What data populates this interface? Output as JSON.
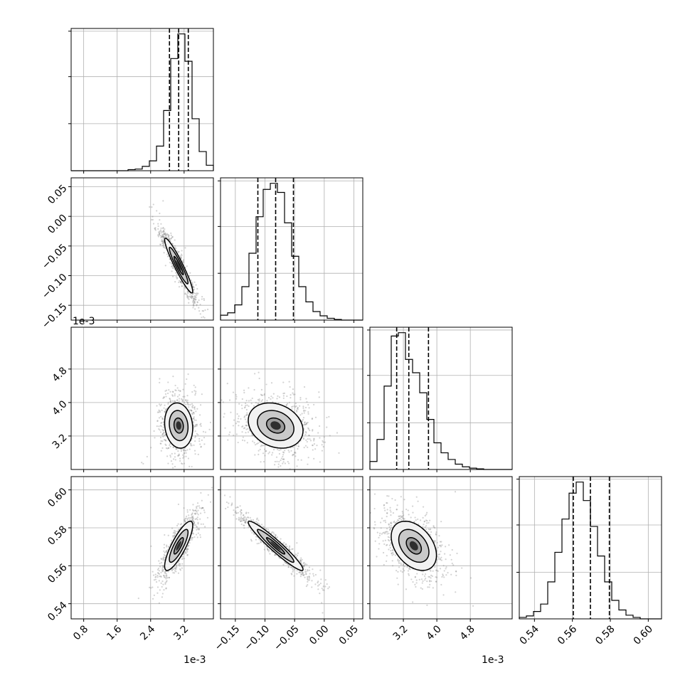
{
  "chart_data": {
    "type": "corner",
    "parameters": [
      {
        "range": [
          0.5,
          3.9
        ],
        "offset_label": "1e-3"
      },
      {
        "range": [
          -0.175,
          0.065
        ],
        "offset_label": "1e-3"
      },
      {
        "range": [
          2.4,
          5.8
        ],
        "offset_label": "1e-3"
      },
      {
        "range": [
          0.532,
          0.607
        ],
        "offset_label": ""
      }
    ],
    "x_tick_labels": [
      {
        "values": [
          0.8,
          1.6,
          2.4,
          3.2
        ],
        "labels": [
          "0.8",
          "1.6",
          "2.4",
          "3.2"
        ]
      },
      {
        "values": [
          -0.15,
          -0.1,
          -0.05,
          0.0,
          0.05
        ],
        "labels": [
          "−0.15",
          "−0.10",
          "−0.05",
          "0.00",
          "0.05"
        ]
      },
      {
        "values": [
          3.2,
          4.0,
          4.8
        ],
        "labels": [
          "3.2",
          "4.0",
          "4.8"
        ]
      },
      {
        "values": [
          0.54,
          0.56,
          0.58,
          0.6
        ],
        "labels": [
          "0.54",
          "0.56",
          "0.58",
          "0.60"
        ]
      }
    ],
    "y_tick_labels": [
      null,
      {
        "values": [
          -0.15,
          -0.1,
          -0.05,
          0.0,
          0.05
        ],
        "labels": [
          "−0.15",
          "−0.10",
          "−0.05",
          "0.00",
          "0.05"
        ]
      },
      {
        "values": [
          3.2,
          4.0,
          4.8
        ],
        "labels": [
          "3.2",
          "4.0",
          "4.8"
        ]
      },
      {
        "values": [
          0.54,
          0.56,
          0.58,
          0.6
        ],
        "labels": [
          "0.54",
          "0.56",
          "0.58",
          "0.60"
        ]
      }
    ],
    "histograms": [
      {
        "bin_edges": [
          0.5,
          0.67,
          0.84,
          1.01,
          1.18,
          1.35,
          1.52,
          1.69,
          1.86,
          2.03,
          2.2,
          2.37,
          2.54,
          2.71,
          2.88,
          3.05,
          3.22,
          3.39,
          3.56,
          3.73,
          3.9
        ],
        "counts": [
          0,
          0,
          0,
          0,
          0,
          0,
          0,
          0,
          2,
          3,
          8,
          18,
          45,
          110,
          205,
          250,
          200,
          95,
          35,
          10
        ],
        "quantiles": [
          2.85,
          3.07,
          3.3
        ]
      },
      {
        "bin_edges": [
          -0.175,
          -0.163,
          -0.151,
          -0.139,
          -0.127,
          -0.115,
          -0.103,
          -0.091,
          -0.079,
          -0.067,
          -0.055,
          -0.043,
          -0.031,
          -0.019,
          -0.007,
          0.005,
          0.017,
          0.029,
          0.041,
          0.053,
          0.065
        ],
        "counts": [
          8,
          12,
          25,
          55,
          110,
          170,
          215,
          225,
          210,
          160,
          105,
          55,
          30,
          14,
          7,
          3,
          1,
          0,
          0,
          0
        ],
        "quantiles": [
          -0.112,
          -0.082,
          -0.052
        ]
      },
      {
        "bin_edges": [
          2.4,
          2.57,
          2.74,
          2.91,
          3.08,
          3.25,
          3.42,
          3.59,
          3.76,
          3.93,
          4.1,
          4.27,
          4.44,
          4.61,
          4.78,
          4.95,
          5.12,
          5.29,
          5.46,
          5.63,
          5.8
        ],
        "counts": [
          12,
          45,
          125,
          200,
          205,
          165,
          145,
          115,
          75,
          40,
          25,
          15,
          8,
          4,
          2,
          1,
          0,
          0,
          0,
          0
        ],
        "quantiles": [
          3.04,
          3.33,
          3.8
        ]
      },
      {
        "bin_edges": [
          0.532,
          0.53575,
          0.5395,
          0.54325,
          0.547,
          0.55075,
          0.5545,
          0.55825,
          0.562,
          0.56575,
          0.5695,
          0.57325,
          0.577,
          0.58075,
          0.5845,
          0.58825,
          0.592,
          0.59575,
          0.5995,
          0.60325,
          0.607
        ],
        "counts": [
          2,
          4,
          10,
          20,
          50,
          90,
          135,
          170,
          185,
          160,
          125,
          85,
          50,
          25,
          12,
          5,
          2,
          0,
          0,
          0
        ],
        "quantiles": [
          0.5605,
          0.5695,
          0.5795
        ]
      }
    ],
    "pairs": [
      {
        "row": 1,
        "col": 0,
        "mean": [
          3.07,
          -0.083
        ],
        "cov": [
          [
            0.05,
            -0.0065
          ],
          [
            -0.0065,
            0.00095
          ]
        ]
      },
      {
        "row": 2,
        "col": 0,
        "mean": [
          3.07,
          3.45
        ],
        "cov": [
          [
            0.05,
            -0.01
          ],
          [
            -0.01,
            0.13
          ]
        ]
      },
      {
        "row": 2,
        "col": 1,
        "mean": [
          -0.082,
          3.45
        ],
        "cov": [
          [
            0.00095,
            -0.0025
          ],
          [
            -0.0025,
            0.13
          ]
        ]
      },
      {
        "row": 3,
        "col": 0,
        "mean": [
          3.07,
          0.5705
        ],
        "cov": [
          [
            0.05,
            0.0016
          ],
          [
            0.0016,
            7.5e-05
          ]
        ]
      },
      {
        "row": 3,
        "col": 1,
        "mean": [
          -0.082,
          0.5705
        ],
        "cov": [
          [
            0.00095,
            -0.000255
          ],
          [
            -0.000255,
            7.5e-05
          ]
        ]
      },
      {
        "row": 3,
        "col": 2,
        "mean": [
          3.45,
          0.5705
        ],
        "cov": [
          [
            0.13,
            -0.0012
          ],
          [
            -0.0012,
            7.5e-05
          ]
        ]
      }
    ],
    "contour_levels": [
      0.5,
      1.0,
      1.5
    ],
    "grid": true,
    "colors": {
      "histogram": "#000000",
      "scatter": "#808080",
      "contour": "#000000",
      "grid": "#b0b0b0"
    }
  }
}
